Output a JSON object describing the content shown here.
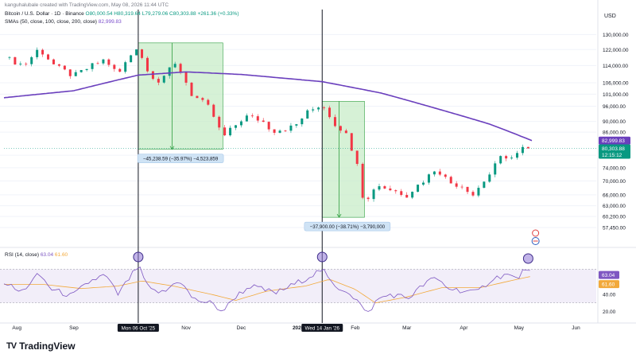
{
  "header": {
    "created": "kanguhalubale created with TradingView.com, May 08, 2026 11:44 UTC",
    "symbol_line": "Bitcoin / U.S. Dollar · 1D · Binance",
    "ohlc": "O80,000.54  H80,319.64  L79,279.06  C80,303.88  +261.36 (+0.33%)",
    "sma_line": "SMAs (50, close, 100, close, 200, close)",
    "sma_value": "82,999.83"
  },
  "currency_label": "USD",
  "brand": {
    "name": "TradingView",
    "mark": "TV"
  },
  "colors": {
    "up": "#089981",
    "down": "#f23645",
    "sma": "#6a3fbd",
    "rsi": "#7e57c2",
    "rsi_ma": "#f2a93b",
    "measure_fill": "#c8ecc8",
    "measure_line": "#2e9e3e"
  },
  "chart_data": [
    {
      "type": "candlestick",
      "title": "Bitcoin / U.S. Dollar · 1D · Binance",
      "y_scale": "log",
      "ylim": [
        53000,
        136000
      ],
      "y_ticks": [
        "130,000.00",
        "122,000.00",
        "114,000.00",
        "106,000.00",
        "101,000.00",
        "96,000.00",
        "90,000.00",
        "86,000.00",
        "78,000.00",
        "74,000.00",
        "70,000.00",
        "66,000.00",
        "63,000.00",
        "60,200.00",
        "57,450.00"
      ],
      "x_ticks": [
        "Aug",
        "Sep",
        "Nov",
        "Dec",
        "2026",
        "Feb",
        "Mar",
        "Apr",
        "May",
        "Jun"
      ],
      "x_date_range": [
        "2025-07-25",
        "2026-06-12"
      ],
      "last_price": "80,303.88",
      "last_price_time": "12:15:12",
      "sma_last": "82,999.83",
      "price_anchors": [
        [
          "2025-07-25",
          118000
        ],
        [
          "2025-08-05",
          114000
        ],
        [
          "2025-08-13",
          122500
        ],
        [
          "2025-08-22",
          113500
        ],
        [
          "2025-09-01",
          109000
        ],
        [
          "2025-09-10",
          113500
        ],
        [
          "2025-09-18",
          117000
        ],
        [
          "2025-09-25",
          109500
        ],
        [
          "2025-10-01",
          118000
        ],
        [
          "2025-10-06",
          124500
        ],
        [
          "2025-10-10",
          112000
        ],
        [
          "2025-10-17",
          107000
        ],
        [
          "2025-10-27",
          115000
        ],
        [
          "2025-11-04",
          101000
        ],
        [
          "2025-11-14",
          95000
        ],
        [
          "2025-11-21",
          84000
        ],
        [
          "2025-12-03",
          92000
        ],
        [
          "2025-12-12",
          90500
        ],
        [
          "2025-12-18",
          86500
        ],
        [
          "2025-12-30",
          88000
        ],
        [
          "2026-01-05",
          93000
        ],
        [
          "2026-01-14",
          97000
        ],
        [
          "2026-01-21",
          89000
        ],
        [
          "2026-01-26",
          86500
        ],
        [
          "2026-02-02",
          76000
        ],
        [
          "2026-02-06",
          62500
        ],
        [
          "2026-02-12",
          69000
        ],
        [
          "2026-02-20",
          67500
        ],
        [
          "2026-03-01",
          66000
        ],
        [
          "2026-03-12",
          71000
        ],
        [
          "2026-03-17",
          74000
        ],
        [
          "2026-03-24",
          69500
        ],
        [
          "2026-04-01",
          68500
        ],
        [
          "2026-04-06",
          66000
        ],
        [
          "2026-04-15",
          72000
        ],
        [
          "2026-04-22",
          78000
        ],
        [
          "2026-04-28",
          77000
        ],
        [
          "2026-05-05",
          81500
        ],
        [
          "2026-05-08",
          80303
        ]
      ],
      "sma200_anchors": [
        [
          "2025-07-25",
          99500
        ],
        [
          "2025-09-01",
          102500
        ],
        [
          "2025-10-06",
          109500
        ],
        [
          "2025-11-01",
          111000
        ],
        [
          "2025-12-01",
          109800
        ],
        [
          "2026-01-14",
          106500
        ],
        [
          "2026-02-15",
          101500
        ],
        [
          "2026-03-15",
          95500
        ],
        [
          "2026-04-15",
          89000
        ],
        [
          "2026-05-08",
          83000
        ]
      ],
      "measurements": [
        {
          "from_date": "2025-10-06",
          "to_date": "2025-11-21",
          "from_price": 125500,
          "to_price": 80000,
          "label": "−45,238.59 (−35.97%) −4,523,859"
        },
        {
          "from_date": "2026-01-14",
          "to_date": "2026-02-06",
          "from_price": 98000,
          "to_price": 60000,
          "label": "−37,900.00 (−38.71%) −3,790,000"
        }
      ],
      "vertical_markers": [
        {
          "date": "2025-10-06",
          "label": "Mon 06 Oct '25"
        },
        {
          "date": "2026-01-14",
          "label": "Wed 14 Jan '26"
        }
      ]
    },
    {
      "type": "line",
      "title": "RSI (14, close)",
      "value": "63.04",
      "ma_value": "61.60",
      "ylim": [
        10,
        90
      ],
      "band": [
        30,
        70
      ],
      "y_ticks": [
        "40.00",
        "20.00"
      ],
      "rsi_anchors": [
        [
          "2025-07-25",
          55
        ],
        [
          "2025-08-03",
          42
        ],
        [
          "2025-08-13",
          64
        ],
        [
          "2025-08-20",
          46
        ],
        [
          "2025-08-31",
          38
        ],
        [
          "2025-09-10",
          56
        ],
        [
          "2025-09-18",
          63
        ],
        [
          "2025-09-25",
          40
        ],
        [
          "2025-10-06",
          74
        ],
        [
          "2025-10-12",
          45
        ],
        [
          "2025-10-20",
          42
        ],
        [
          "2025-10-28",
          58
        ],
        [
          "2025-11-05",
          34
        ],
        [
          "2025-11-14",
          30
        ],
        [
          "2025-11-21",
          20
        ],
        [
          "2025-11-28",
          38
        ],
        [
          "2025-12-06",
          50
        ],
        [
          "2025-12-14",
          45
        ],
        [
          "2025-12-20",
          42
        ],
        [
          "2025-12-28",
          50
        ],
        [
          "2026-01-06",
          60
        ],
        [
          "2026-01-14",
          70
        ],
        [
          "2026-01-20",
          50
        ],
        [
          "2026-01-28",
          44
        ],
        [
          "2026-02-04",
          28
        ],
        [
          "2026-02-07",
          15
        ],
        [
          "2026-02-13",
          34
        ],
        [
          "2026-02-20",
          40
        ],
        [
          "2026-03-02",
          36
        ],
        [
          "2026-03-12",
          55
        ],
        [
          "2026-03-17",
          59
        ],
        [
          "2026-03-24",
          47
        ],
        [
          "2026-04-02",
          44
        ],
        [
          "2026-04-08",
          42
        ],
        [
          "2026-04-16",
          58
        ],
        [
          "2026-04-24",
          64
        ],
        [
          "2026-04-30",
          58
        ],
        [
          "2026-05-05",
          72
        ],
        [
          "2026-05-08",
          63
        ]
      ],
      "rsi_ma_anchors": [
        [
          "2025-07-25",
          52
        ],
        [
          "2025-08-15",
          52
        ],
        [
          "2025-09-05",
          47
        ],
        [
          "2025-09-25",
          50
        ],
        [
          "2025-10-08",
          56
        ],
        [
          "2025-10-25",
          50
        ],
        [
          "2025-11-15",
          40
        ],
        [
          "2025-11-28",
          33
        ],
        [
          "2025-12-15",
          44
        ],
        [
          "2026-01-05",
          50
        ],
        [
          "2026-01-18",
          58
        ],
        [
          "2026-02-01",
          46
        ],
        [
          "2026-02-12",
          30
        ],
        [
          "2026-03-01",
          37
        ],
        [
          "2026-03-20",
          48
        ],
        [
          "2026-04-10",
          48
        ],
        [
          "2026-04-28",
          57
        ],
        [
          "2026-05-08",
          61.6
        ]
      ]
    }
  ]
}
